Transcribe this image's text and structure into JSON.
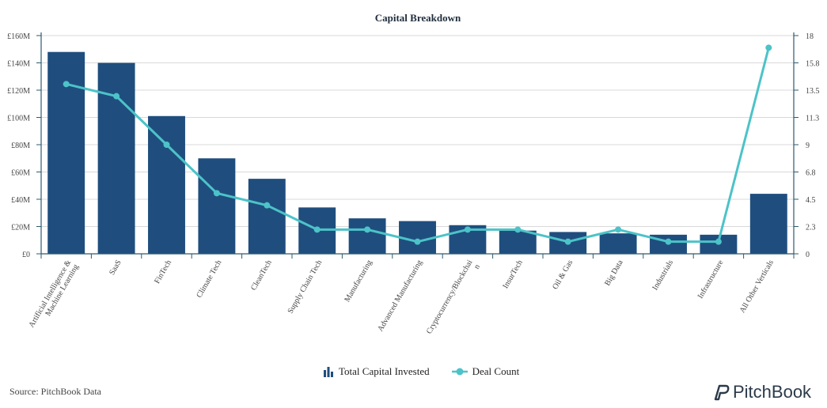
{
  "chart_data": {
    "type": "bar",
    "title": "Capital Breakdown",
    "categories": [
      "Artificial Intelligence & Machine Learning",
      "SaaS",
      "FinTech",
      "Climate Tech",
      "CleanTech",
      "Supply Chain Tech",
      "Manufacturing",
      "Advanced Manufacturing",
      "Cryptocurrency/Blockchain",
      "InsurTech",
      "Oil & Gas",
      "Big Data",
      "Industrials",
      "Infrastructure",
      "All Other Verticals"
    ],
    "series": [
      {
        "name": "Total Capital Invested",
        "type": "bar",
        "axis": "left",
        "color": "#1f4e7e",
        "values": [
          148,
          140,
          101,
          70,
          55,
          34,
          26,
          24,
          21,
          17,
          16,
          15,
          14,
          14,
          44
        ]
      },
      {
        "name": "Deal Count",
        "type": "line",
        "axis": "right",
        "color": "#4cc3c8",
        "values": [
          14,
          13,
          9,
          5,
          4,
          2,
          2,
          1,
          2,
          2,
          1,
          2,
          1,
          1,
          17
        ]
      }
    ],
    "y_left": {
      "ylim": [
        0,
        160
      ],
      "ticks": [
        0,
        20,
        40,
        60,
        80,
        100,
        120,
        140,
        160
      ],
      "tick_labels": [
        "£0",
        "£20M",
        "£40M",
        "£60M",
        "£80M",
        "£100M",
        "£120M",
        "£140M",
        "£160M"
      ]
    },
    "y_right": {
      "ylim": [
        0,
        18
      ],
      "ticks": [
        0,
        2.25,
        4.5,
        6.75,
        9,
        11.25,
        13.5,
        15.75,
        18
      ],
      "tick_labels": [
        "0",
        "2.3",
        "4.5",
        "6.8",
        "9",
        "11.3",
        "13.5",
        "15.8",
        "18"
      ]
    },
    "grid": true,
    "legend_position": "bottom"
  },
  "source_text": "Source: PitchBook Data",
  "logo_text": "PitchBook",
  "colors": {
    "bar": "#1f4e7e",
    "line": "#4cc3c8",
    "axis": "#2d5a6e",
    "grid": "#d9d9d9"
  },
  "icons": {
    "legend_bar": "bar-chart-icon",
    "legend_line": "line-marker-icon",
    "logo": "pitchbook-logo-icon"
  }
}
